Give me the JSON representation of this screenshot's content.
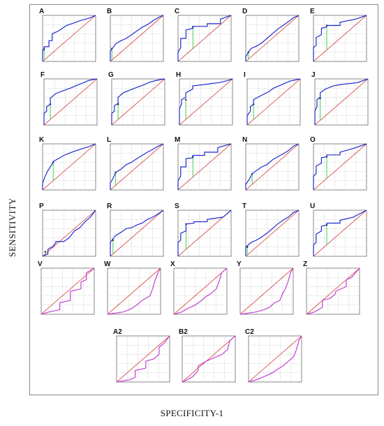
{
  "figure": {
    "ylabel": "SENSITIVITY",
    "xlabel": "SPECIFICITY-1"
  },
  "colors": {
    "roc_blue": "#1f2bd0",
    "roc_magenta": "#c43fd6",
    "reference": "#d9534f",
    "cutoff": "#2ecc40",
    "grid": "#d8d8d8"
  },
  "chart_data": [
    {
      "label": "A",
      "type": "line",
      "color": "blue",
      "cutoff": [
        0.03,
        0.28
      ],
      "x": [
        0,
        0,
        0.03,
        0.03,
        0.12,
        0.12,
        0.18,
        0.18,
        0.28,
        0.35,
        0.45,
        0.55,
        0.65,
        0.75,
        0.82,
        0.9,
        0.96,
        1
      ],
      "y": [
        0,
        0.25,
        0.25,
        0.32,
        0.32,
        0.45,
        0.45,
        0.6,
        0.65,
        0.7,
        0.78,
        0.82,
        0.86,
        0.9,
        0.92,
        0.95,
        0.98,
        1
      ]
    },
    {
      "label": "B",
      "type": "line",
      "color": "blue",
      "cutoff": [
        0.03,
        0.28
      ],
      "x": [
        0,
        0,
        0.05,
        0.1,
        0.2,
        0.3,
        0.4,
        0.5,
        0.6,
        0.7,
        0.8,
        0.9,
        1
      ],
      "y": [
        0,
        0.22,
        0.3,
        0.38,
        0.45,
        0.5,
        0.58,
        0.66,
        0.74,
        0.8,
        0.88,
        0.95,
        1
      ]
    },
    {
      "label": "C",
      "type": "line",
      "color": "blue",
      "cutoff": [
        0.28,
        0.75
      ],
      "x": [
        0,
        0,
        0.05,
        0.05,
        0.15,
        0.15,
        0.28,
        0.28,
        0.55,
        0.55,
        0.8,
        0.8,
        1
      ],
      "y": [
        0,
        0.2,
        0.3,
        0.5,
        0.5,
        0.68,
        0.72,
        0.76,
        0.76,
        0.82,
        0.82,
        0.92,
        1
      ]
    },
    {
      "label": "D",
      "type": "line",
      "color": "blue",
      "cutoff": [
        0.05,
        0.2
      ],
      "x": [
        0,
        0,
        0.05,
        0.1,
        0.2,
        0.3,
        0.4,
        0.5,
        0.6,
        0.7,
        0.8,
        0.9,
        1
      ],
      "y": [
        0,
        0.1,
        0.2,
        0.28,
        0.33,
        0.4,
        0.5,
        0.6,
        0.7,
        0.78,
        0.86,
        0.95,
        1
      ]
    },
    {
      "label": "E",
      "type": "line",
      "color": "blue",
      "cutoff": [
        0.25,
        0.78
      ],
      "x": [
        0,
        0,
        0.05,
        0.05,
        0.15,
        0.15,
        0.25,
        0.25,
        0.5,
        0.5,
        0.8,
        1
      ],
      "y": [
        0,
        0.3,
        0.35,
        0.52,
        0.58,
        0.72,
        0.75,
        0.78,
        0.78,
        0.85,
        0.92,
        1
      ]
    },
    {
      "label": "F",
      "type": "line",
      "color": "blue",
      "cutoff": [
        0.12,
        0.45
      ],
      "x": [
        0,
        0,
        0.05,
        0.05,
        0.12,
        0.12,
        0.22,
        0.35,
        0.5,
        0.62,
        0.75,
        0.85,
        1
      ],
      "y": [
        0,
        0.25,
        0.3,
        0.4,
        0.45,
        0.58,
        0.68,
        0.74,
        0.8,
        0.86,
        0.92,
        0.97,
        1
      ]
    },
    {
      "label": "G",
      "type": "line",
      "color": "blue",
      "cutoff": [
        0.12,
        0.45
      ],
      "x": [
        0,
        0,
        0.05,
        0.05,
        0.12,
        0.12,
        0.22,
        0.35,
        0.48,
        0.6,
        0.72,
        0.85,
        1
      ],
      "y": [
        0,
        0.25,
        0.3,
        0.42,
        0.47,
        0.6,
        0.7,
        0.76,
        0.82,
        0.87,
        0.93,
        0.97,
        1
      ]
    },
    {
      "label": "H",
      "type": "line",
      "color": "blue",
      "cutoff": [
        0.12,
        0.55
      ],
      "x": [
        0,
        0,
        0.04,
        0.04,
        0.12,
        0.12,
        0.25,
        0.25,
        0.5,
        0.6,
        0.75,
        0.9,
        1
      ],
      "y": [
        0,
        0.35,
        0.45,
        0.55,
        0.6,
        0.7,
        0.78,
        0.85,
        0.88,
        0.9,
        0.92,
        0.96,
        1
      ]
    },
    {
      "label": "I",
      "type": "line",
      "color": "blue",
      "cutoff": [
        0.12,
        0.45
      ],
      "x": [
        0,
        0,
        0.06,
        0.06,
        0.12,
        0.12,
        0.2,
        0.3,
        0.4,
        0.5,
        0.6,
        0.7,
        0.8,
        1
      ],
      "y": [
        0,
        0.2,
        0.3,
        0.4,
        0.45,
        0.55,
        0.6,
        0.66,
        0.72,
        0.8,
        0.85,
        0.9,
        0.95,
        1
      ]
    },
    {
      "label": "J",
      "type": "line",
      "color": "blue",
      "cutoff": [
        0.1,
        0.58
      ],
      "x": [
        0,
        0,
        0.04,
        0.04,
        0.1,
        0.1,
        0.2,
        0.35,
        0.5,
        0.65,
        0.8,
        1
      ],
      "y": [
        0,
        0.3,
        0.4,
        0.55,
        0.6,
        0.7,
        0.78,
        0.85,
        0.88,
        0.9,
        0.92,
        1
      ]
    },
    {
      "label": "K",
      "type": "line",
      "color": "blue",
      "cutoff": [
        0.2,
        0.6
      ],
      "x": [
        0,
        0,
        0.05,
        0.1,
        0.2,
        0.2,
        0.3,
        0.4,
        0.55,
        0.7,
        0.85,
        1
      ],
      "y": [
        0,
        0.15,
        0.3,
        0.42,
        0.6,
        0.62,
        0.68,
        0.75,
        0.82,
        0.88,
        0.93,
        1
      ]
    },
    {
      "label": "L",
      "type": "line",
      "color": "blue",
      "cutoff": [
        0.1,
        0.38
      ],
      "x": [
        0,
        0,
        0.05,
        0.1,
        0.2,
        0.3,
        0.4,
        0.5,
        0.6,
        0.7,
        0.8,
        0.9,
        1
      ],
      "y": [
        0,
        0.15,
        0.25,
        0.38,
        0.45,
        0.55,
        0.6,
        0.68,
        0.75,
        0.82,
        0.88,
        0.95,
        1
      ]
    },
    {
      "label": "M",
      "type": "line",
      "color": "blue",
      "cutoff": [
        0.28,
        0.72
      ],
      "x": [
        0,
        0,
        0.05,
        0.05,
        0.15,
        0.15,
        0.28,
        0.28,
        0.5,
        0.5,
        0.75,
        0.75,
        1
      ],
      "y": [
        0,
        0.2,
        0.3,
        0.5,
        0.5,
        0.68,
        0.7,
        0.75,
        0.75,
        0.82,
        0.82,
        0.92,
        1
      ]
    },
    {
      "label": "N",
      "type": "line",
      "color": "blue",
      "cutoff": [
        0.12,
        0.35
      ],
      "x": [
        0,
        0,
        0.06,
        0.12,
        0.2,
        0.3,
        0.4,
        0.5,
        0.6,
        0.7,
        0.8,
        0.9,
        1
      ],
      "y": [
        0,
        0.12,
        0.22,
        0.35,
        0.42,
        0.5,
        0.55,
        0.65,
        0.72,
        0.78,
        0.85,
        0.95,
        1
      ]
    },
    {
      "label": "O",
      "type": "line",
      "color": "blue",
      "cutoff": [
        0.25,
        0.72
      ],
      "x": [
        0,
        0,
        0.05,
        0.05,
        0.15,
        0.15,
        0.25,
        0.25,
        0.5,
        0.5,
        0.75,
        1
      ],
      "y": [
        0,
        0.3,
        0.35,
        0.52,
        0.58,
        0.7,
        0.72,
        0.76,
        0.76,
        0.82,
        0.9,
        1
      ]
    },
    {
      "label": "P",
      "type": "line",
      "color": "blue",
      "cutoff": [
        0.05,
        0.1
      ],
      "x": [
        0,
        0.1,
        0.1,
        0.2,
        0.25,
        0.25,
        0.4,
        0.5,
        0.6,
        0.7,
        0.8,
        0.9,
        1
      ],
      "y": [
        0,
        0.05,
        0.15,
        0.22,
        0.3,
        0.32,
        0.32,
        0.4,
        0.55,
        0.62,
        0.75,
        0.85,
        1
      ]
    },
    {
      "label": "R",
      "type": "line",
      "color": "blue",
      "cutoff": [
        0.05,
        0.35
      ],
      "x": [
        0,
        0,
        0.05,
        0.1,
        0.2,
        0.3,
        0.4,
        0.5,
        0.6,
        0.7,
        0.8,
        0.9,
        1
      ],
      "y": [
        0,
        0.3,
        0.38,
        0.45,
        0.52,
        0.6,
        0.62,
        0.68,
        0.72,
        0.8,
        0.85,
        0.92,
        1
      ]
    },
    {
      "label": "S",
      "type": "line",
      "color": "blue",
      "cutoff": [
        0.15,
        0.7
      ],
      "x": [
        0,
        0,
        0.05,
        0.05,
        0.15,
        0.15,
        0.3,
        0.3,
        0.55,
        0.55,
        0.85,
        1
      ],
      "y": [
        0,
        0.3,
        0.35,
        0.5,
        0.55,
        0.7,
        0.72,
        0.75,
        0.75,
        0.8,
        0.85,
        1
      ]
    },
    {
      "label": "T",
      "type": "line",
      "color": "blue",
      "cutoff": [
        0.03,
        0.2
      ],
      "x": [
        0,
        0,
        0.05,
        0.1,
        0.2,
        0.3,
        0.4,
        0.5,
        0.6,
        0.7,
        0.8,
        0.9,
        1
      ],
      "y": [
        0,
        0.2,
        0.25,
        0.3,
        0.35,
        0.42,
        0.5,
        0.6,
        0.7,
        0.78,
        0.85,
        0.95,
        1
      ]
    },
    {
      "label": "U",
      "type": "line",
      "color": "blue",
      "cutoff": [
        0.25,
        0.68
      ],
      "x": [
        0,
        0,
        0.05,
        0.05,
        0.15,
        0.15,
        0.25,
        0.25,
        0.5,
        0.5,
        0.75,
        1
      ],
      "y": [
        0,
        0.25,
        0.3,
        0.48,
        0.55,
        0.65,
        0.68,
        0.72,
        0.72,
        0.78,
        0.85,
        1
      ]
    },
    {
      "label": "V",
      "type": "line",
      "color": "magenta",
      "x": [
        0,
        0.15,
        0.35,
        0.35,
        0.55,
        0.55,
        0.75,
        0.75,
        0.85,
        0.85,
        1
      ],
      "y": [
        0,
        0.05,
        0.1,
        0.25,
        0.3,
        0.5,
        0.55,
        0.7,
        0.75,
        0.9,
        1
      ]
    },
    {
      "label": "W",
      "type": "line",
      "color": "magenta",
      "x": [
        0,
        0.3,
        0.45,
        0.55,
        0.65,
        0.8,
        0.85,
        0.9,
        0.95,
        1
      ],
      "y": [
        0,
        0.05,
        0.12,
        0.2,
        0.3,
        0.4,
        0.55,
        0.75,
        0.9,
        1
      ]
    },
    {
      "label": "X",
      "type": "line",
      "color": "magenta",
      "x": [
        0,
        0.15,
        0.25,
        0.4,
        0.5,
        0.6,
        0.7,
        0.8,
        0.85,
        0.9,
        1
      ],
      "y": [
        0,
        0.05,
        0.12,
        0.2,
        0.28,
        0.38,
        0.45,
        0.55,
        0.7,
        0.9,
        1
      ]
    },
    {
      "label": "Y",
      "type": "line",
      "color": "magenta",
      "x": [
        0,
        0.3,
        0.45,
        0.55,
        0.65,
        0.75,
        0.8,
        0.85,
        0.9,
        0.95,
        1
      ],
      "y": [
        0,
        0.05,
        0.1,
        0.15,
        0.25,
        0.3,
        0.45,
        0.55,
        0.7,
        0.9,
        1
      ]
    },
    {
      "label": "Z",
      "type": "line",
      "color": "magenta",
      "x": [
        0,
        0.15,
        0.3,
        0.3,
        0.45,
        0.55,
        0.55,
        0.75,
        0.75,
        0.85,
        1
      ],
      "y": [
        0,
        0.05,
        0.15,
        0.3,
        0.35,
        0.45,
        0.5,
        0.6,
        0.75,
        0.8,
        1
      ]
    },
    {
      "label": "A2",
      "type": "line",
      "color": "magenta",
      "x": [
        0,
        0.25,
        0.35,
        0.35,
        0.55,
        0.55,
        0.7,
        0.8,
        0.8,
        0.9,
        1
      ],
      "y": [
        0,
        0.05,
        0.1,
        0.25,
        0.3,
        0.45,
        0.5,
        0.6,
        0.75,
        0.85,
        1
      ]
    },
    {
      "label": "B2",
      "type": "line",
      "color": "magenta",
      "x": [
        0,
        0.1,
        0.2,
        0.3,
        0.3,
        0.45,
        0.55,
        0.65,
        0.75,
        0.85,
        0.9,
        1
      ],
      "y": [
        0,
        0.05,
        0.12,
        0.25,
        0.35,
        0.45,
        0.5,
        0.55,
        0.6,
        0.7,
        0.9,
        1
      ]
    },
    {
      "label": "C2",
      "type": "line",
      "color": "magenta",
      "x": [
        0,
        0.15,
        0.3,
        0.45,
        0.55,
        0.65,
        0.75,
        0.85,
        0.9,
        0.95,
        1
      ],
      "y": [
        0,
        0.05,
        0.12,
        0.2,
        0.28,
        0.35,
        0.45,
        0.55,
        0.7,
        0.9,
        1
      ]
    }
  ]
}
